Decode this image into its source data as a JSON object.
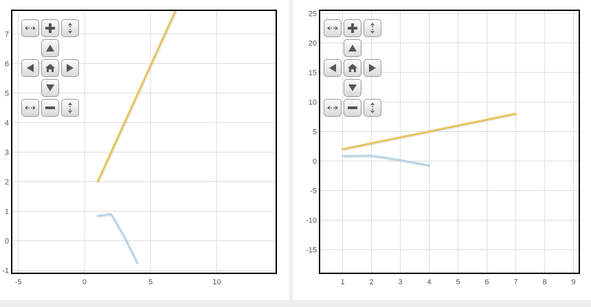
{
  "chart_data": [
    {
      "type": "line",
      "title": "",
      "xlabel": "",
      "ylabel": "",
      "xlim": [
        -5.5,
        14.5
      ],
      "ylim": [
        -1.1,
        7.8
      ],
      "x_ticks": [
        -5,
        0,
        5,
        10
      ],
      "y_ticks": [
        -1,
        0,
        1,
        2,
        3,
        4,
        5,
        6,
        7
      ],
      "grid": true,
      "series": [
        {
          "color": "#e6c35c",
          "x": [
            1,
            6.9
          ],
          "y": [
            2,
            7.8
          ]
        },
        {
          "color": "#b9d5e8",
          "x": [
            1,
            2,
            3,
            4
          ],
          "y": [
            0.84,
            0.91,
            0.14,
            -0.76
          ]
        }
      ]
    },
    {
      "type": "line",
      "title": "",
      "xlabel": "",
      "ylabel": "",
      "xlim": [
        0.2,
        9.2
      ],
      "ylim": [
        -19,
        25.5
      ],
      "x_ticks": [
        1,
        2,
        3,
        4,
        5,
        6,
        7,
        8,
        9
      ],
      "y_ticks": [
        -15,
        -10,
        -5,
        0,
        5,
        10,
        15,
        20,
        25
      ],
      "grid": true,
      "series": [
        {
          "color": "#e6c35c",
          "x": [
            1,
            7
          ],
          "y": [
            2,
            8
          ]
        },
        {
          "color": "#b9d5e8",
          "x": [
            1,
            2,
            3,
            4
          ],
          "y": [
            0.84,
            0.91,
            0.14,
            -0.76
          ]
        }
      ]
    }
  ],
  "nav_icons": [
    "zoom-out-x-icon",
    "zoom-in-icon",
    "zoom-in-y-icon",
    "pan-up-icon",
    "pan-left-icon",
    "home-icon",
    "pan-right-icon",
    "pan-down-icon",
    "zoom-out-x-icon",
    "zoom-out-icon",
    "zoom-out-y-icon"
  ]
}
